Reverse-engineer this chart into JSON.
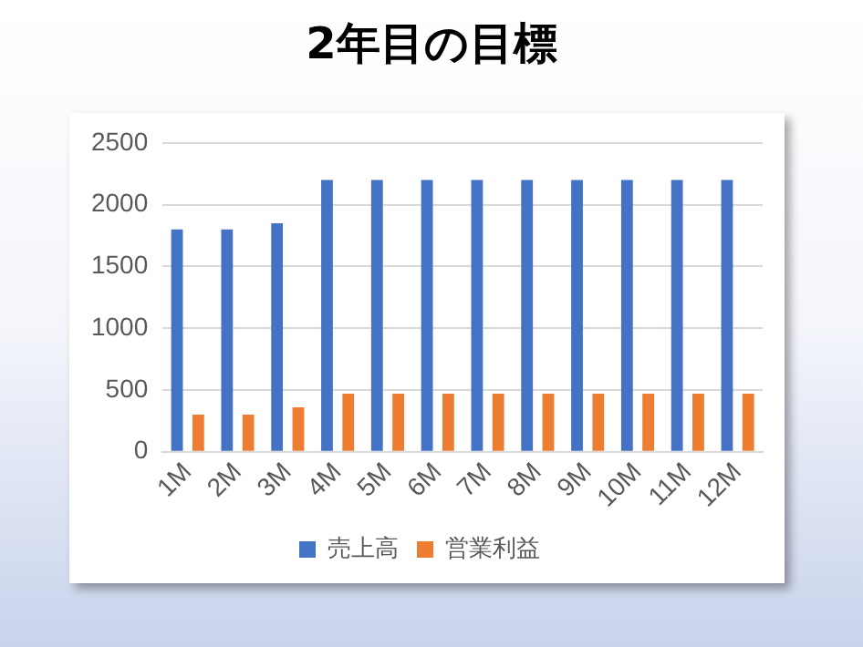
{
  "chart_data": {
    "type": "bar",
    "title": "2年目の目標",
    "categories": [
      "1M",
      "2M",
      "3M",
      "4M",
      "5M",
      "6M",
      "7M",
      "8M",
      "9M",
      "10M",
      "11M",
      "12M"
    ],
    "series": [
      {
        "name": "売上高",
        "color": "#4472c4",
        "values": [
          1800,
          1800,
          1850,
          2200,
          2200,
          2200,
          2200,
          2200,
          2200,
          2200,
          2200,
          2200
        ]
      },
      {
        "name": "営業利益",
        "color": "#ed7d31",
        "values": [
          300,
          300,
          360,
          470,
          470,
          470,
          470,
          470,
          470,
          470,
          470,
          470
        ]
      }
    ],
    "ylim": [
      0,
      2500
    ],
    "yticks": [
      0,
      500,
      1000,
      1500,
      2000,
      2500
    ],
    "grid": "y",
    "legend": "bottom"
  }
}
